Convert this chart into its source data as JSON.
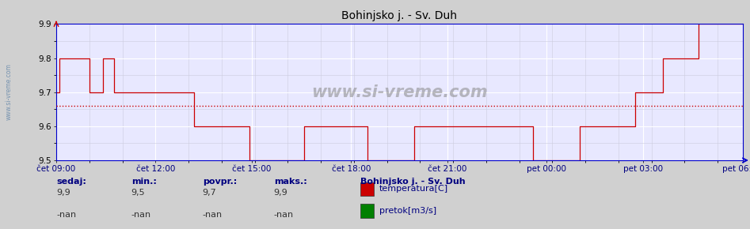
{
  "title": "Bohinjsko j. - Sv. Duh",
  "bg_color": "#d0d0d0",
  "plot_bg_color": "#e8e8ff",
  "grid_color_major": "#ffffff",
  "grid_color_minor": "#ccccdd",
  "line_color": "#cc0000",
  "avg_line_color": "#cc0000",
  "avg_value": 9.66,
  "ylim": [
    9.5,
    9.9
  ],
  "yticks": [
    9.5,
    9.6,
    9.7,
    9.8,
    9.9
  ],
  "xtick_labels": [
    "čet 09:00",
    "čet 12:00",
    "čet 15:00",
    "čet 18:00",
    "čet 21:00",
    "pet 00:00",
    "pet 03:00",
    "pet 06:00"
  ],
  "watermark": "www.si-vreme.com",
  "sidebar_text": "www.si-vreme.com",
  "footer_labels": [
    "sedaj:",
    "min.:",
    "povpr.:",
    "maks.:"
  ],
  "footer_values_row1": [
    "9,9",
    "9,5",
    "9,7",
    "9,9"
  ],
  "footer_values_row2": [
    "-nan",
    "-nan",
    "-nan",
    "-nan"
  ],
  "legend_title": "Bohinjsko j. - Sv. Duh",
  "legend_items": [
    [
      "temperatura[C]",
      "#cc0000"
    ],
    [
      "pretok[m3/s]",
      "#008000"
    ]
  ],
  "temperature_data": [
    9.7,
    9.8,
    9.8,
    9.8,
    9.8,
    9.8,
    9.8,
    9.8,
    9.8,
    9.8,
    9.8,
    9.8,
    9.7,
    9.7,
    9.7,
    9.7,
    9.7,
    9.8,
    9.8,
    9.8,
    9.8,
    9.7,
    9.7,
    9.7,
    9.7,
    9.7,
    9.7,
    9.7,
    9.7,
    9.7,
    9.7,
    9.7,
    9.7,
    9.7,
    9.7,
    9.7,
    9.7,
    9.7,
    9.7,
    9.7,
    9.7,
    9.7,
    9.7,
    9.7,
    9.7,
    9.7,
    9.7,
    9.7,
    9.7,
    9.7,
    9.6,
    9.6,
    9.6,
    9.6,
    9.6,
    9.6,
    9.6,
    9.6,
    9.6,
    9.6,
    9.6,
    9.6,
    9.6,
    9.6,
    9.6,
    9.6,
    9.6,
    9.6,
    9.6,
    9.6,
    9.5,
    9.5,
    9.5,
    9.5,
    9.5,
    9.5,
    9.5,
    9.5,
    9.5,
    9.5,
    9.5,
    9.5,
    9.5,
    9.5,
    9.5,
    9.5,
    9.5,
    9.5,
    9.5,
    9.5,
    9.6,
    9.6,
    9.6,
    9.6,
    9.6,
    9.6,
    9.6,
    9.6,
    9.6,
    9.6,
    9.6,
    9.6,
    9.6,
    9.6,
    9.6,
    9.6,
    9.6,
    9.6,
    9.6,
    9.6,
    9.6,
    9.6,
    9.6,
    9.5,
    9.5,
    9.5,
    9.5,
    9.5,
    9.5,
    9.5,
    9.5,
    9.5,
    9.5,
    9.5,
    9.5,
    9.5,
    9.5,
    9.5,
    9.5,
    9.5,
    9.6,
    9.6,
    9.6,
    9.6,
    9.6,
    9.6,
    9.6,
    9.6,
    9.6,
    9.6,
    9.6,
    9.6,
    9.6,
    9.6,
    9.6,
    9.6,
    9.6,
    9.6,
    9.6,
    9.6,
    9.6,
    9.6,
    9.6,
    9.6,
    9.6,
    9.6,
    9.6,
    9.6,
    9.6,
    9.6,
    9.6,
    9.6,
    9.6,
    9.6,
    9.6,
    9.6,
    9.6,
    9.6,
    9.6,
    9.6,
    9.6,
    9.6,
    9.6,
    9.5,
    9.5,
    9.5,
    9.5,
    9.5,
    9.5,
    9.5,
    9.5,
    9.5,
    9.5,
    9.5,
    9.5,
    9.5,
    9.5,
    9.5,
    9.5,
    9.5,
    9.6,
    9.6,
    9.6,
    9.6,
    9.6,
    9.6,
    9.6,
    9.6,
    9.6,
    9.6,
    9.6,
    9.6,
    9.6,
    9.6,
    9.6,
    9.6,
    9.6,
    9.6,
    9.6,
    9.6,
    9.7,
    9.7,
    9.7,
    9.7,
    9.7,
    9.7,
    9.7,
    9.7,
    9.7,
    9.7,
    9.8,
    9.8,
    9.8,
    9.8,
    9.8,
    9.8,
    9.8,
    9.8,
    9.8,
    9.8,
    9.8,
    9.8,
    9.8,
    9.9,
    9.9,
    9.9,
    9.9,
    9.9,
    9.9,
    9.9,
    9.9,
    9.9,
    9.9,
    9.9,
    9.9,
    9.9,
    9.9,
    9.9,
    9.9,
    9.9
  ],
  "figsize": [
    9.47,
    2.9
  ],
  "dpi": 100
}
